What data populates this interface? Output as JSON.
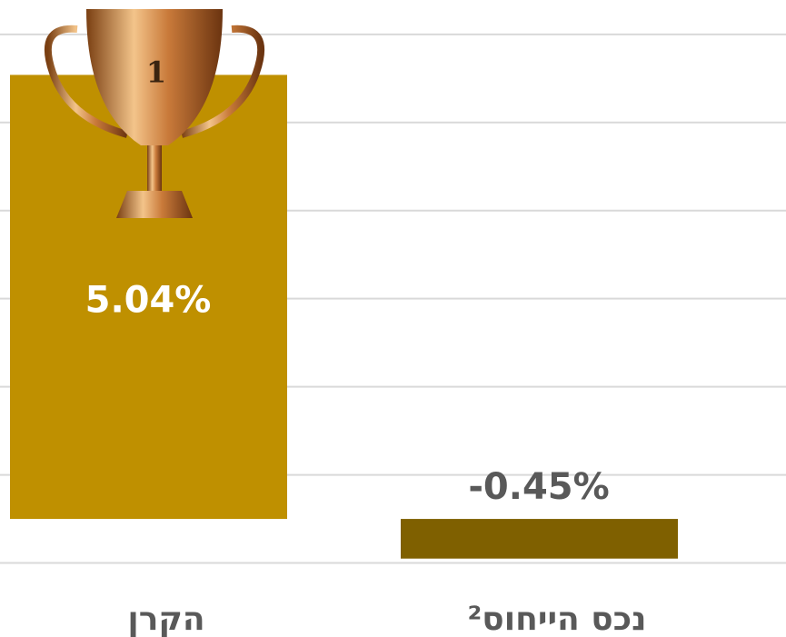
{
  "chart_data": {
    "type": "bar",
    "categories": [
      "הקרן",
      "נכס הייחוס²"
    ],
    "values": [
      5.04,
      -0.45
    ],
    "value_labels": [
      "5.04%",
      "-0.45%"
    ],
    "colors": [
      "#bf9000",
      "#7f6000"
    ],
    "ylim": [
      -1.34,
      5.89
    ],
    "gridlines": [
      -0.5,
      0.5,
      1.5,
      2.5,
      3.5,
      4.5,
      5.5
    ],
    "grid": true
  },
  "trophy": {
    "rank": "1"
  }
}
